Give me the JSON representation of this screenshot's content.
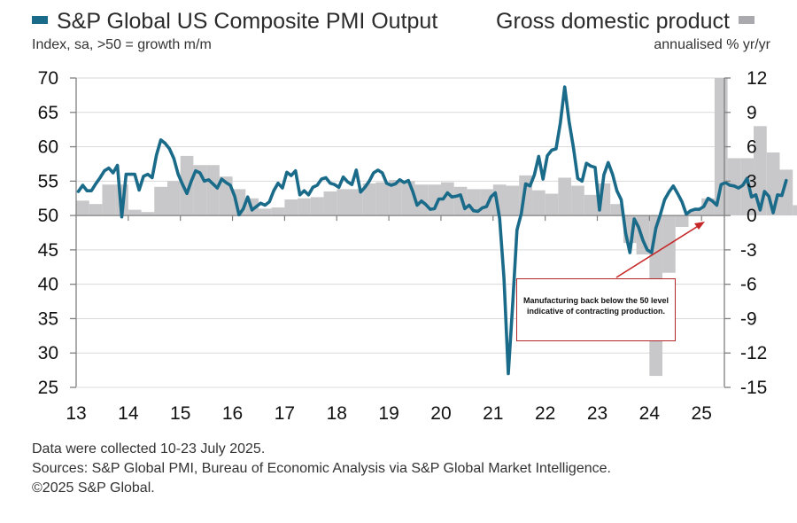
{
  "legend": {
    "left_title": "S&P Global US Composite PMI Output",
    "left_subtitle": "Index, sa, >50 = growth m/m",
    "right_title": "Gross domestic product",
    "right_subtitle": "annualised % yr/yr",
    "pmi_color": "#1a6b8a",
    "gdp_color": "#c8c8ca"
  },
  "annotation": {
    "text": "Manufacturing back below the 50 level indicative of contracting production.",
    "border_color": "#b2262a"
  },
  "footer": {
    "line1": "Data were collected 10-23 July 2025.",
    "line2": "Sources: S&P Global PMI, Bureau of Economic Analysis via S&P Global Market Intelligence.",
    "line3": "©2025 S&P Global."
  },
  "chart_data": {
    "type": "bar+line",
    "title": "S&P Global US Composite PMI Output vs Gross domestic product",
    "xlabel": "",
    "ylabel_left": "Index, sa, >50 = growth m/m",
    "ylabel_right": "annualised % yr/yr",
    "ylim_left": [
      25,
      70
    ],
    "ylim_right": [
      -15,
      12
    ],
    "yticks_left": [
      "70",
      "65",
      "60",
      "55",
      "50",
      "45",
      "40",
      "35",
      "30",
      "25"
    ],
    "yticks_right": [
      "12",
      "9",
      "6",
      "3",
      "0",
      "-3",
      "-6",
      "-9",
      "-12",
      "-15"
    ],
    "xticks": [
      "13",
      "14",
      "15",
      "16",
      "17",
      "18",
      "19",
      "20",
      "21",
      "22",
      "23",
      "24",
      "25"
    ],
    "grid": true,
    "series": [
      {
        "name": "S&P Global US Composite PMI Output",
        "type": "line",
        "axis": "left",
        "start": "2013-01",
        "frequency": "monthly",
        "values": [
          53.5,
          54.4,
          53.6,
          53.6,
          54.6,
          55.5,
          56.5,
          56.9,
          56.2,
          57.3,
          49.8,
          56.0,
          56.0,
          56.0,
          53.7,
          55.7,
          56.0,
          55.5,
          58.8,
          61.0,
          60.5,
          59.7,
          58.3,
          56.0,
          54.5,
          53.2,
          55.0,
          56.5,
          56.2,
          55.0,
          55.2,
          54.6,
          54.0,
          55.3,
          54.8,
          54.4,
          52.8,
          50.1,
          51.0,
          52.7,
          50.8,
          51.3,
          51.8,
          51.5,
          52.0,
          53.6,
          54.7,
          54.0,
          56.3,
          55.8,
          56.5,
          53.0,
          53.6,
          53.0,
          54.1,
          54.4,
          55.3,
          55.5,
          54.7,
          54.5,
          54.1,
          55.6,
          54.9,
          54.5,
          56.6,
          53.4,
          54.1,
          55.0,
          56.2,
          56.6,
          56.2,
          54.7,
          54.4,
          54.6,
          55.2,
          54.8,
          55.1,
          53.5,
          51.5,
          52.1,
          51.6,
          50.9,
          51.0,
          52.4,
          52.4,
          53.3,
          52.7,
          52.8,
          53.0,
          51.0,
          51.5,
          50.7,
          50.6,
          51.1,
          51.3,
          52.7,
          53.3,
          49.6,
          40.9,
          27.0,
          37.0,
          47.9,
          50.3,
          54.6,
          54.3,
          55.9,
          58.6,
          55.3,
          58.7,
          59.5,
          59.7,
          63.5,
          68.7,
          63.7,
          59.9,
          55.4,
          55.0,
          57.6,
          57.2,
          57.0,
          50.8,
          55.9,
          57.7,
          56.0,
          53.6,
          52.3,
          47.5,
          44.6,
          49.5,
          48.3,
          46.4,
          45.0,
          44.6,
          48.2,
          50.1,
          52.3,
          53.4,
          54.3,
          53.2,
          52.0,
          50.2,
          50.7,
          50.9,
          50.9,
          51.3,
          52.5,
          52.1,
          51.5,
          54.5,
          54.8,
          54.4,
          54.3,
          54.0,
          54.4,
          55.4,
          52.7,
          53.0,
          50.8,
          53.5,
          52.8,
          50.4,
          53.0,
          52.9,
          55.1
        ]
      },
      {
        "name": "Gross domestic product",
        "type": "bar",
        "axis": "right",
        "start": "2013-Q1",
        "frequency": "quarterly",
        "values": [
          1.3,
          1.0,
          2.7,
          2.7,
          0.5,
          0.3,
          2.5,
          3.0,
          5.2,
          4.4,
          4.4,
          3.4,
          2.3,
          1.5,
          0.6,
          0.7,
          1.4,
          1.5,
          1.6,
          2.1,
          2.3,
          2.3,
          2.8,
          2.9,
          3.1,
          3.0,
          2.7,
          2.7,
          2.9,
          2.5,
          2.3,
          2.3,
          2.7,
          2.6,
          3.5,
          2.2,
          1.9,
          3.3,
          2.6,
          1.8,
          2.8,
          1.0,
          -2.4,
          -3.4,
          -14.0,
          -5.0,
          -1.0,
          0.5,
          1.5,
          12.0,
          5.0,
          5.0,
          7.8,
          5.5,
          4.0,
          0.9,
          -0.6,
          0.7,
          2.0,
          1.8,
          1.0,
          3.0,
          3.0,
          1.4,
          2.6,
          2.9,
          4.4,
          1.6,
          1.4,
          1.2,
          3.0,
          2.4,
          2.9,
          2.9,
          3.1,
          2.7,
          2.4,
          -0.5,
          3.0
        ]
      }
    ],
    "annotations": [
      {
        "text": "Manufacturing back below the 50 level indicative of contracting production.",
        "points_to": "2025-Q1 GDP bar below zero"
      }
    ]
  }
}
